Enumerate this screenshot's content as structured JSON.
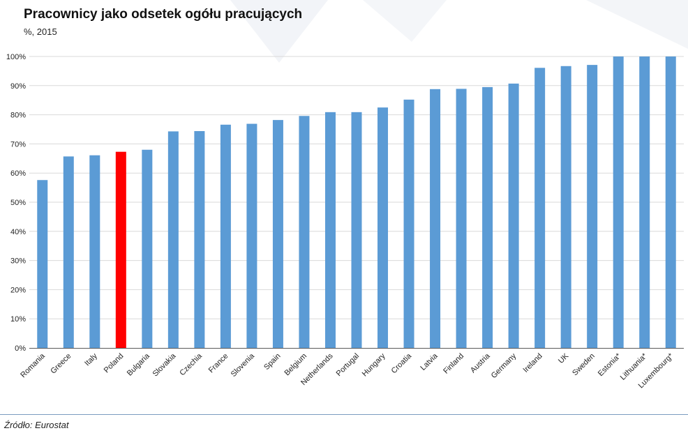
{
  "header": {
    "title": "Pracownicy jako odsetek ogółu pracujących",
    "subtitle": "%, 2015"
  },
  "footer": {
    "source": "Źródło: Eurostat"
  },
  "colors": {
    "bar": "#5b9bd5",
    "highlight": "#ff0000",
    "grid": "#d9d9d9",
    "axis": "#595959"
  },
  "chart_data": {
    "type": "bar",
    "title": "Pracownicy jako odsetek ogółu pracujących",
    "subtitle": "%, 2015",
    "categories": [
      "Romania",
      "Greece",
      "Italy",
      "Poland",
      "Bulgaria",
      "Slovakia",
      "Czechia",
      "France",
      "Slovenia",
      "Spain",
      "Belgium",
      "Netherlands",
      "Portugal",
      "Hungary",
      "Croatia",
      "Latvia",
      "Finland",
      "Austria",
      "Germany",
      "Ireland",
      "UK",
      "Sweden",
      "Estonia*",
      "Lithuania*",
      "Luxembourg*"
    ],
    "values": [
      57.6,
      65.7,
      66.1,
      67.3,
      68.0,
      74.3,
      74.4,
      76.6,
      76.9,
      78.2,
      79.6,
      80.9,
      80.9,
      82.5,
      85.2,
      88.8,
      88.9,
      89.5,
      90.7,
      96.1,
      96.7,
      97.1,
      100,
      100,
      100
    ],
    "highlight": "Poland",
    "ylim": [
      0,
      100
    ],
    "yticks": [
      0,
      10,
      20,
      30,
      40,
      50,
      60,
      70,
      80,
      90,
      100
    ],
    "ytick_labels": [
      "0%",
      "10%",
      "20%",
      "30%",
      "40%",
      "50%",
      "60%",
      "70%",
      "80%",
      "90%",
      "100%"
    ],
    "grid": true,
    "legend": "none",
    "xlabel": "",
    "ylabel": ""
  }
}
